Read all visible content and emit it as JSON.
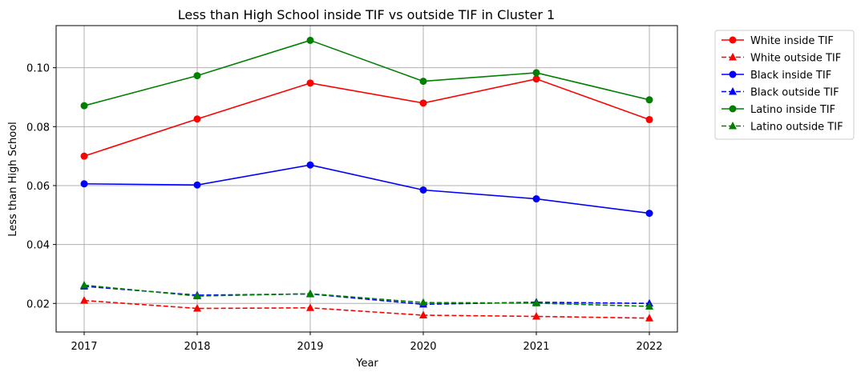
{
  "chart_data": {
    "type": "line",
    "title": "Less than High School inside TIF vs outside TIF in Cluster 1",
    "xlabel": "Year",
    "ylabel": "Less than High School",
    "x": [
      "2017",
      "2018",
      "2019",
      "2020",
      "2021",
      "2022"
    ],
    "yticks": [
      "0.02",
      "0.04",
      "0.06",
      "0.08",
      "0.10"
    ],
    "ylim": [
      0.0103,
      0.1143
    ],
    "grid": true,
    "legend_position": "outside-top-right",
    "series": [
      {
        "name": "White inside TIF",
        "color": "#ff0000",
        "style": "solid",
        "marker": "circle",
        "values": [
          0.07,
          0.0826,
          0.0948,
          0.088,
          0.0962,
          0.0824
        ]
      },
      {
        "name": "White outside TIF",
        "color": "#ff0000",
        "style": "dashed",
        "marker": "triangle",
        "values": [
          0.021,
          0.0183,
          0.0185,
          0.016,
          0.0156,
          0.015
        ]
      },
      {
        "name": "Black inside TIF",
        "color": "#0000ff",
        "style": "solid",
        "marker": "circle",
        "values": [
          0.0606,
          0.0602,
          0.067,
          0.0585,
          0.0555,
          0.0506
        ]
      },
      {
        "name": "Black outside TIF",
        "color": "#0000ff",
        "style": "dashed",
        "marker": "triangle",
        "values": [
          0.0258,
          0.0228,
          0.0232,
          0.0197,
          0.0204,
          0.02
        ]
      },
      {
        "name": "Latino inside TIF",
        "color": "#008000",
        "style": "solid",
        "marker": "circle",
        "values": [
          0.0871,
          0.0973,
          0.1093,
          0.0954,
          0.0983,
          0.0891
        ]
      },
      {
        "name": "Latino outside TIF",
        "color": "#008000",
        "style": "dashed",
        "marker": "triangle",
        "values": [
          0.0262,
          0.0225,
          0.0233,
          0.0203,
          0.0201,
          0.019
        ]
      }
    ]
  }
}
